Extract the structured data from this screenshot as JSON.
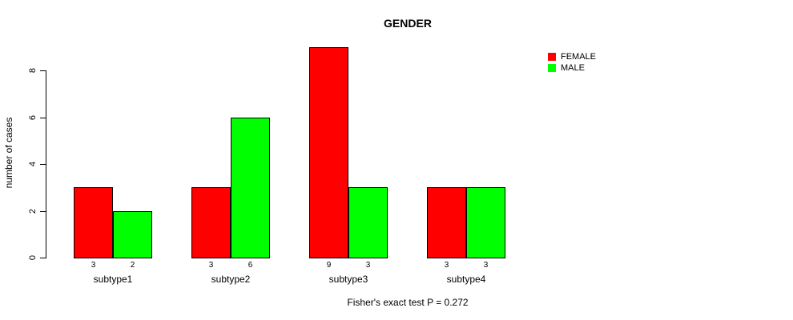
{
  "chart_data": {
    "type": "bar",
    "title": "GENDER",
    "ylabel": "number of cases",
    "xlabel": "",
    "categories": [
      "subtype1",
      "subtype2",
      "subtype3",
      "subtype4"
    ],
    "series": [
      {
        "name": "FEMALE",
        "color": "#ff0000",
        "values": [
          3,
          3,
          9,
          3
        ]
      },
      {
        "name": "MALE",
        "color": "#00ff00",
        "values": [
          2,
          6,
          3,
          3
        ]
      }
    ],
    "bar_count_labels": {
      "FEMALE": [
        "3",
        "3",
        "9",
        "3"
      ],
      "MALE": [
        "2",
        "6",
        "3",
        "3"
      ]
    },
    "yticks": [
      "0",
      "2",
      "4",
      "6",
      "8"
    ],
    "ylim": [
      0,
      9
    ],
    "grid": "off",
    "legend_position": "top-right",
    "caption": "Fisher's exact test P = 0.272",
    "bar_border_color": "#000000",
    "axis_color": "#000000",
    "text_color": "#000000"
  }
}
